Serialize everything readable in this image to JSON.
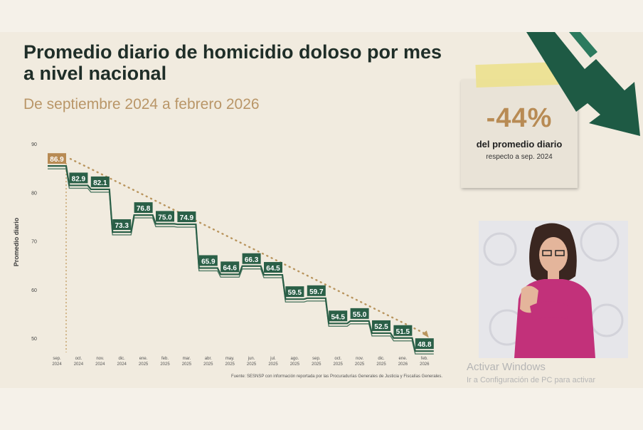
{
  "title": "Promedio diario de homicidio doloso por mes a nivel nacional",
  "subtitle": "De septiembre 2024 a febrero 2026",
  "source": "Fuente: SESNSP con información reportada por las Procuradurías Generales de Justicia y Fiscalías Generales.",
  "callout": {
    "percent": "-44%",
    "line1": "del promedio diario",
    "line2": "respecto a sep. 2024"
  },
  "watermark": {
    "line1": "Activar Windows",
    "line2": "Ir a Configuración de PC para activar"
  },
  "colors": {
    "accent": "#2a5f47",
    "highlight": "#b88b54",
    "title": "#1f2e28",
    "subtitle": "#b99668"
  },
  "icons": [
    "down-trend-arrow-icon"
  ],
  "chart_data": {
    "type": "line",
    "step": true,
    "title": "Promedio diario de homicidio doloso por mes a nivel nacional",
    "subtitle": "De septiembre 2024 a febrero 2026",
    "xlabel": "",
    "ylabel": "Promedio diario",
    "yticks": [
      50,
      60,
      70,
      80,
      90
    ],
    "ylim": [
      48,
      92
    ],
    "grid": false,
    "trendline": "dotted",
    "categories": [
      [
        "sep.",
        "2024"
      ],
      [
        "oct.",
        "2024"
      ],
      [
        "nov.",
        "2024"
      ],
      [
        "dic.",
        "2024"
      ],
      [
        "ene.",
        "2025"
      ],
      [
        "feb.",
        "2025"
      ],
      [
        "mar.",
        "2025"
      ],
      [
        "abr.",
        "2025"
      ],
      [
        "may.",
        "2025"
      ],
      [
        "jun.",
        "2025"
      ],
      [
        "jul.",
        "2025"
      ],
      [
        "ago.",
        "2025"
      ],
      [
        "sep.",
        "2025"
      ],
      [
        "oct.",
        "2025"
      ],
      [
        "nov.",
        "2025"
      ],
      [
        "dic.",
        "2025"
      ],
      [
        "ene.",
        "2026"
      ],
      [
        "feb.",
        "2026"
      ]
    ],
    "values": [
      86.9,
      82.9,
      82.1,
      73.3,
      76.8,
      75.0,
      74.9,
      65.9,
      64.6,
      66.3,
      64.5,
      59.5,
      59.7,
      54.5,
      55.0,
      52.5,
      51.5,
      48.8
    ],
    "labels": [
      "86.9",
      "82.9",
      "82.1",
      "73.3",
      "76.8",
      "75.0",
      "74.9",
      "65.9",
      "64.6",
      "66.3",
      "64.5",
      "59.5",
      "59.7",
      "54.5",
      "55.0",
      "52.5",
      "51.5",
      "48.8"
    ]
  }
}
